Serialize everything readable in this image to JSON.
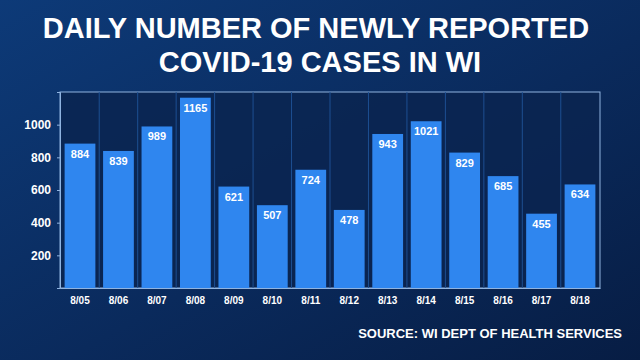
{
  "chart_data": {
    "type": "bar",
    "title": "DAILY NUMBER OF NEWLY REPORTED COVID-19 CASES IN WI",
    "categories": [
      "8/05",
      "8/06",
      "8/07",
      "8/08",
      "8/09",
      "8/10",
      "8/11",
      "8/12",
      "8/13",
      "8/14",
      "8/15",
      "8/16",
      "8/17",
      "8/18"
    ],
    "values": [
      884,
      839,
      989,
      1165,
      621,
      507,
      724,
      478,
      943,
      1021,
      829,
      685,
      455,
      634
    ],
    "color": "#2f86ef",
    "ylim": [
      0,
      1200
    ],
    "yticks": [
      200,
      400,
      600,
      800,
      1000
    ],
    "grid": false,
    "data_labels": true,
    "source": "SOURCE: WI DEPT OF HEALTH SERVICES"
  }
}
